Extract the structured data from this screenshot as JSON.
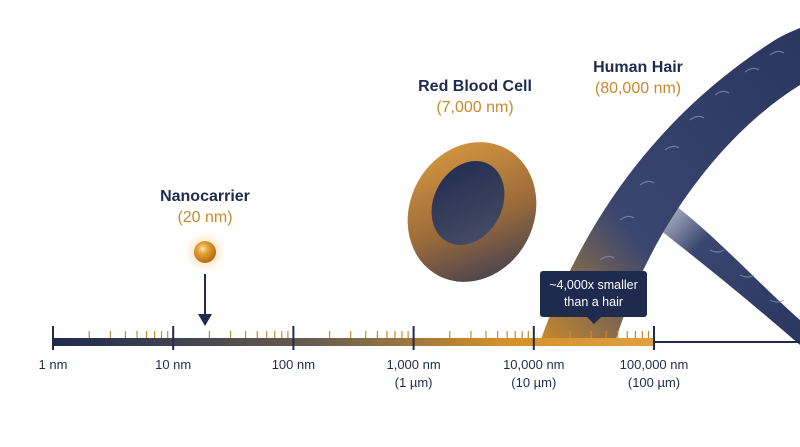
{
  "objects": {
    "nanocarrier": {
      "name": "Nanocarrier",
      "size": "(20 nm)"
    },
    "red_blood_cell": {
      "name": "Red Blood Cell",
      "size": "(7,000 nm)"
    },
    "human_hair": {
      "name": "Human Hair",
      "size": "(80,000 nm)"
    }
  },
  "callout": {
    "line1": "~4,000x smaller",
    "line2": "than a hair"
  },
  "scale": {
    "ticks": [
      {
        "line1": "1 nm",
        "line2": ""
      },
      {
        "line1": "10 nm",
        "line2": ""
      },
      {
        "line1": "100 nm",
        "line2": ""
      },
      {
        "line1": "1,000 nm",
        "line2": "(1 µm)"
      },
      {
        "line1": "10,000 nm",
        "line2": "(10 µm)"
      },
      {
        "line1": "100,000 nm",
        "line2": "(100 µm)"
      }
    ]
  },
  "colors": {
    "navy": "#1f2a4f",
    "orange": "#c98a2c",
    "hair": "#2f3d68"
  }
}
